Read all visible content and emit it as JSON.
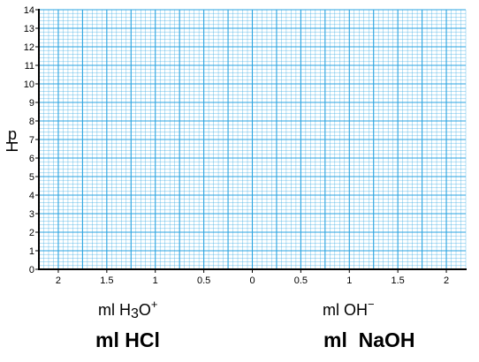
{
  "chart_data": {
    "type": "line",
    "title": "",
    "ylabel_letters": [
      "p",
      "H"
    ],
    "y_ticks": [
      "0",
      "1",
      "2",
      "3",
      "4",
      "5",
      "6",
      "7",
      "8",
      "9",
      "10",
      "11",
      "12",
      "13",
      "14"
    ],
    "ylim": [
      0,
      14
    ],
    "x_ticks": [
      "2",
      "1.5",
      "1",
      "0.5",
      "0",
      "0.5",
      "1",
      "1.5",
      "2"
    ],
    "xlim": [
      -2.2,
      2.2
    ],
    "grid": true,
    "grid_color": "#29a3e0",
    "series": []
  },
  "labels": {
    "acid_unit": {
      "prefix": "ml H",
      "sub": "3",
      "mid": "O",
      "sup": "+"
    },
    "base_unit": {
      "prefix": "ml OH",
      "sup": "−"
    },
    "acid_reagent": "ml HCl",
    "base_reagent": "ml  NaOH"
  },
  "colors": {
    "grid": "#29a3e0",
    "axis": "#000000",
    "background": "#ffffff"
  }
}
